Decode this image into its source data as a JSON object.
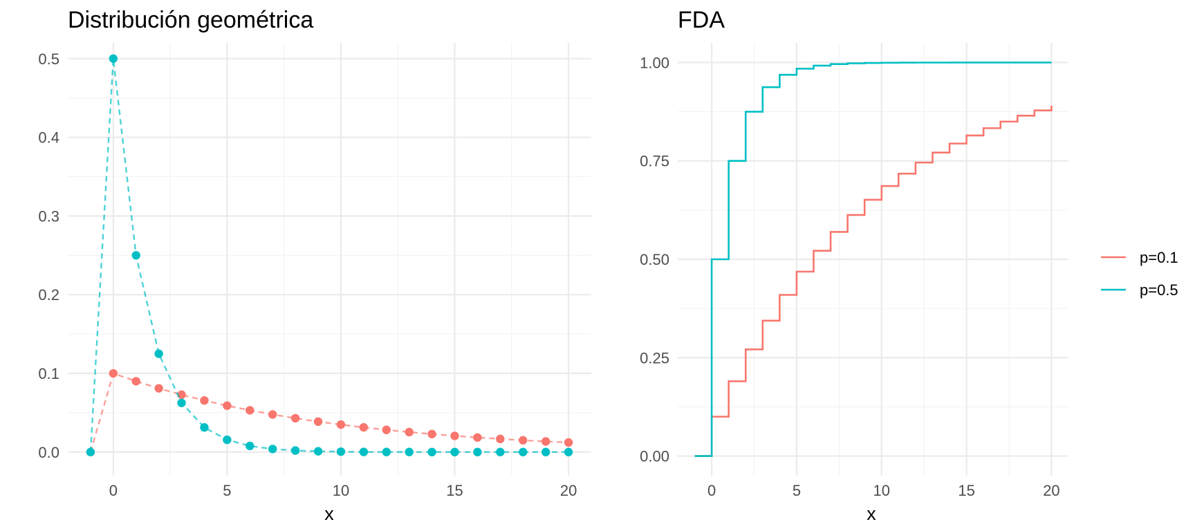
{
  "chart_data": [
    {
      "type": "scatter",
      "title": "Distribución geométrica",
      "xlabel": "x",
      "ylabel": "",
      "xlim": [
        -2,
        21
      ],
      "ylim": [
        -0.03,
        0.52
      ],
      "grid": true,
      "x_ticks": [
        0,
        5,
        10,
        15,
        20
      ],
      "y_ticks": [
        0.0,
        0.1,
        0.2,
        0.3,
        0.4,
        0.5
      ],
      "y_tick_labels": [
        "0.0",
        "0.1",
        "0.2",
        "0.3",
        "0.4",
        "0.5"
      ],
      "connected_by": "dashed line",
      "x": [
        -1,
        0,
        1,
        2,
        3,
        4,
        5,
        6,
        7,
        8,
        9,
        10,
        11,
        12,
        13,
        14,
        15,
        16,
        17,
        18,
        19,
        20
      ],
      "series": [
        {
          "name": "p=0.1",
          "color": "#F8766D",
          "values": [
            0,
            0.1,
            0.09,
            0.081,
            0.0729,
            0.0656,
            0.059,
            0.0531,
            0.0478,
            0.043,
            0.0387,
            0.0349,
            0.0314,
            0.0282,
            0.0254,
            0.0229,
            0.0206,
            0.0185,
            0.0167,
            0.015,
            0.0135,
            0.0122
          ]
        },
        {
          "name": "p=0.5",
          "color": "#00BFC4",
          "values": [
            0,
            0.5,
            0.25,
            0.125,
            0.0625,
            0.0313,
            0.0156,
            0.0078,
            0.0039,
            0.002,
            0.001,
            0.0005,
            0.0002,
            0.0001,
            0.0001,
            0,
            0,
            0,
            0,
            0,
            0,
            0
          ]
        }
      ]
    },
    {
      "type": "line",
      "step": true,
      "title": "FDA",
      "xlabel": "x",
      "ylabel": "",
      "xlim": [
        -2,
        21
      ],
      "ylim": [
        -0.05,
        1.05
      ],
      "grid": true,
      "x_ticks": [
        0,
        5,
        10,
        15,
        20
      ],
      "y_ticks": [
        0,
        0.25,
        0.5,
        0.75,
        1.0
      ],
      "y_tick_labels": [
        "0.00",
        "0.25",
        "0.50",
        "0.75",
        "1.00"
      ],
      "x": [
        -1,
        0,
        1,
        2,
        3,
        4,
        5,
        6,
        7,
        8,
        9,
        10,
        11,
        12,
        13,
        14,
        15,
        16,
        17,
        18,
        19,
        20
      ],
      "series": [
        {
          "name": "p=0.1",
          "color": "#F8766D",
          "values": [
            0,
            0.1,
            0.19,
            0.271,
            0.3439,
            0.4095,
            0.4686,
            0.5217,
            0.5695,
            0.6126,
            0.6513,
            0.6862,
            0.7176,
            0.7458,
            0.7712,
            0.7941,
            0.8147,
            0.8332,
            0.8499,
            0.8649,
            0.8784,
            0.8906
          ]
        },
        {
          "name": "p=0.5",
          "color": "#00BFC4",
          "values": [
            0,
            0.5,
            0.75,
            0.875,
            0.9375,
            0.9688,
            0.9844,
            0.9922,
            0.9961,
            0.998,
            0.999,
            0.9995,
            0.9998,
            0.9999,
            0.9999,
            1,
            1,
            1,
            1,
            1,
            1,
            1
          ]
        }
      ]
    }
  ],
  "legend": {
    "position": "right",
    "items": [
      {
        "label": "p=0.1",
        "color": "#F8766D"
      },
      {
        "label": "p=0.5",
        "color": "#00BFC4"
      }
    ]
  }
}
